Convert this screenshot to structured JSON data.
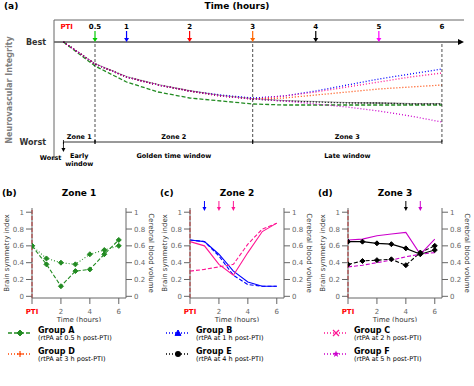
{
  "chart_data": [
    {
      "type": "line",
      "panel_label": "(a)",
      "title": "Time (hours)",
      "y_label": "Neurovascular Integrity",
      "x": [
        0,
        0.5,
        1,
        1.5,
        2,
        2.5,
        3,
        3.5,
        4,
        4.5,
        5,
        5.5,
        6
      ],
      "xlim": [
        -0.15,
        6.35
      ],
      "ylim": [
        -0.18,
        1.22
      ],
      "yticks": [
        {
          "value": 0,
          "label": "Worst"
        },
        {
          "value": 1,
          "label": "Best"
        }
      ],
      "tick_labels": "y",
      "legend": "bottom",
      "band": {
        "lo": [
          1.0,
          0.78,
          0.65,
          0.57,
          0.51,
          0.46,
          0.43,
          0.41,
          0.4,
          0.39,
          0.38,
          0.38,
          0.38
        ],
        "hi": [
          1.0,
          0.79,
          0.66,
          0.58,
          0.52,
          0.47,
          0.44,
          0.42,
          0.41,
          0.4,
          0.4,
          0.39,
          0.39
        ],
        "color": "#808080"
      },
      "series": [
        {
          "name": "Group A",
          "description": "(rtPA at 0.5 h post-PTI)",
          "color": "#228B22",
          "marker": "diamond",
          "line_style": "dashed",
          "values": [
            1.0,
            0.76,
            0.6,
            0.5,
            0.44,
            0.41,
            0.38,
            0.37,
            0.37,
            0.37,
            0.37,
            0.37,
            0.37
          ]
        },
        {
          "name": "Group B",
          "description": "(rtPA at 1 h post-PTI)",
          "color": "#0000ff",
          "marker": "triangle",
          "line_style": "dotted",
          "values": [
            1.0,
            0.78,
            0.65,
            0.57,
            0.51,
            0.47,
            0.44,
            0.46,
            0.51,
            0.57,
            0.63,
            0.68,
            0.73
          ]
        },
        {
          "name": "Group C",
          "description": "(rtPA at 2 h post-PTI)",
          "color": "#ff1493",
          "marker": "x",
          "line_style": "dotted",
          "values": [
            1.0,
            0.78,
            0.65,
            0.57,
            0.51,
            0.46,
            0.43,
            0.46,
            0.5,
            0.55,
            0.6,
            0.65,
            0.69
          ]
        },
        {
          "name": "Group D",
          "description": "(rtPA at 3 h post-PTI)",
          "color": "#ff4500",
          "marker": "plus",
          "line_style": "dotted",
          "values": [
            1.0,
            0.78,
            0.65,
            0.57,
            0.51,
            0.46,
            0.43,
            0.44,
            0.47,
            0.5,
            0.53,
            0.55,
            0.57
          ]
        },
        {
          "name": "Group E",
          "description": "(rtPA at 4 h post-PTI)",
          "color": "#000000",
          "marker": "circle",
          "line_style": "dotted",
          "values": [
            1.0,
            0.78,
            0.65,
            0.57,
            0.51,
            0.46,
            0.43,
            0.41,
            0.4,
            0.39,
            0.39,
            0.38,
            0.38
          ]
        },
        {
          "name": "Group F",
          "description": "(rtPA at 5 h post-PTI)",
          "color": "#cc00cc",
          "marker": "star",
          "line_style": "dotted",
          "values": [
            1.0,
            0.78,
            0.65,
            0.57,
            0.51,
            0.46,
            0.43,
            0.41,
            0.38,
            0.35,
            0.31,
            0.26,
            0.2
          ]
        }
      ],
      "pti": {
        "label": "PTI",
        "x": 0,
        "color": "#ff0000"
      },
      "arrows": [
        {
          "x": 0.5,
          "color": "#00cc00"
        },
        {
          "x": 1,
          "color": "#0000ff"
        },
        {
          "x": 2,
          "color": "#ff0000"
        },
        {
          "x": 3,
          "color": "#ff6600"
        },
        {
          "x": 4,
          "color": "#000000"
        },
        {
          "x": 5,
          "color": "#ff00ff"
        }
      ],
      "end_tick": 6,
      "vlines": [
        0.5,
        3,
        6
      ],
      "zones": [
        {
          "from": 0,
          "to": 0.5,
          "label": "Zone 1",
          "window": "Early\nwindow"
        },
        {
          "from": 0.5,
          "to": 3,
          "label": "Zone 2",
          "window": "Golden time window"
        },
        {
          "from": 3,
          "to": 6,
          "label": "Zone 3",
          "window": "Late window"
        }
      ],
      "worst_label": "Worst"
    },
    {
      "type": "line",
      "panel_label": "(b)",
      "title": "Zone 1",
      "x_label": "Time (hours)",
      "y_label": "Brain symmetry index",
      "y2_label": "Cerebral blood volume",
      "x": [
        0,
        1,
        2,
        3,
        4,
        5,
        6
      ],
      "xlim": [
        0,
        6.5
      ],
      "xticks": [
        {
          "value": 0,
          "label": "PTI"
        },
        2,
        4,
        6
      ],
      "ylim": [
        -0.02,
        1.05
      ],
      "yticks": [
        0,
        0.2,
        0.4,
        0.6,
        0.8,
        1
      ],
      "y2lim": [
        -0.02,
        1.05
      ],
      "y2ticks": [
        0,
        0.2,
        0.4,
        0.6,
        0.8,
        1
      ],
      "vline": {
        "x": 0,
        "color": "#ff0000",
        "line_style": "dashed"
      },
      "arrows": [],
      "series": [
        {
          "color": "#228B22",
          "marker": "diamond",
          "line_style": "dashed",
          "values": [
            0.6,
            0.38,
            0.12,
            0.3,
            0.32,
            0.5,
            0.67
          ]
        },
        {
          "color": "#228B22",
          "marker": "diamond",
          "line_style": "dotted",
          "axis": "y2",
          "values": [
            0.6,
            0.45,
            0.4,
            0.38,
            0.5,
            0.55,
            0.6
          ]
        }
      ]
    },
    {
      "type": "line",
      "panel_label": "(c)",
      "title": "Zone 2",
      "x_label": "Time (hours)",
      "y_label": "Brain symmetry index",
      "y2_label": "Cerebral blood volume",
      "x": [
        0,
        1,
        2,
        3,
        4,
        5,
        6
      ],
      "xlim": [
        0,
        6.5
      ],
      "xticks": [
        {
          "value": 0,
          "label": "PTI"
        },
        2,
        4,
        6
      ],
      "ylim": [
        -0.02,
        1.05
      ],
      "yticks": [
        0,
        0.2,
        0.4,
        0.6,
        0.8,
        1
      ],
      "y2lim": [
        -0.02,
        1.05
      ],
      "y2ticks": [
        0,
        0.2,
        0.4,
        0.6,
        0.8,
        1
      ],
      "vline": {
        "x": 0,
        "color": "#ff0000",
        "line_style": "dashed"
      },
      "arrows": [
        {
          "x": 1,
          "color": "#0000ff"
        },
        {
          "x": 2,
          "color": "#ff1493"
        },
        {
          "x": 3,
          "color": "#ff1493"
        }
      ],
      "series": [
        {
          "color": "#0000ff",
          "line_style": "solid",
          "values": [
            0.67,
            0.65,
            0.5,
            0.3,
            0.17,
            0.12,
            0.12
          ]
        },
        {
          "color": "#0000ff",
          "line_style": "dashed",
          "axis": "y2",
          "values": [
            0.67,
            0.65,
            0.48,
            0.25,
            0.14,
            0.12,
            0.12
          ]
        },
        {
          "color": "#ff1493",
          "line_style": "solid",
          "values": [
            0.65,
            0.6,
            0.38,
            0.25,
            0.52,
            0.77,
            0.87
          ]
        },
        {
          "color": "#ff1493",
          "line_style": "dashed",
          "axis": "y2",
          "values": [
            0.3,
            0.32,
            0.35,
            0.38,
            0.62,
            0.8,
            0.87
          ]
        }
      ]
    },
    {
      "type": "line",
      "panel_label": "(d)",
      "title": "Zone 3",
      "x_label": "Time (hours)",
      "y_label": "Brain symmetry index",
      "y2_label": "Cerebral blood volume",
      "x": [
        0,
        1,
        2,
        3,
        4,
        5,
        6
      ],
      "xlim": [
        0,
        6.5
      ],
      "xticks": [
        {
          "value": 0,
          "label": "PTI"
        },
        2,
        4,
        6
      ],
      "ylim": [
        -0.02,
        1.05
      ],
      "yticks": [
        0,
        0.2,
        0.4,
        0.6,
        0.8,
        1
      ],
      "y2lim": [
        -0.02,
        1.05
      ],
      "y2ticks": [
        0,
        0.2,
        0.4,
        0.6,
        0.8,
        1
      ],
      "vline": {
        "x": 0,
        "color": "#ff0000",
        "line_style": "dashed"
      },
      "arrows": [
        {
          "x": 4,
          "color": "#000000"
        },
        {
          "x": 5,
          "color": "#cc00cc"
        }
      ],
      "series": [
        {
          "color": "#000000",
          "marker": "diamond",
          "line_style": "solid",
          "values": [
            0.65,
            0.65,
            0.63,
            0.62,
            0.57,
            0.5,
            0.55
          ]
        },
        {
          "color": "#000000",
          "marker": "diamond",
          "line_style": "dashed",
          "axis": "y2",
          "values": [
            0.38,
            0.42,
            0.43,
            0.44,
            0.37,
            0.52,
            0.6
          ]
        },
        {
          "color": "#cc00cc",
          "line_style": "solid",
          "values": [
            0.67,
            0.68,
            0.72,
            0.74,
            0.76,
            0.5,
            0.68
          ]
        },
        {
          "color": "#cc00cc",
          "line_style": "dashed",
          "axis": "y2",
          "values": [
            0.35,
            0.37,
            0.4,
            0.43,
            0.47,
            0.5,
            0.52
          ]
        }
      ]
    }
  ]
}
